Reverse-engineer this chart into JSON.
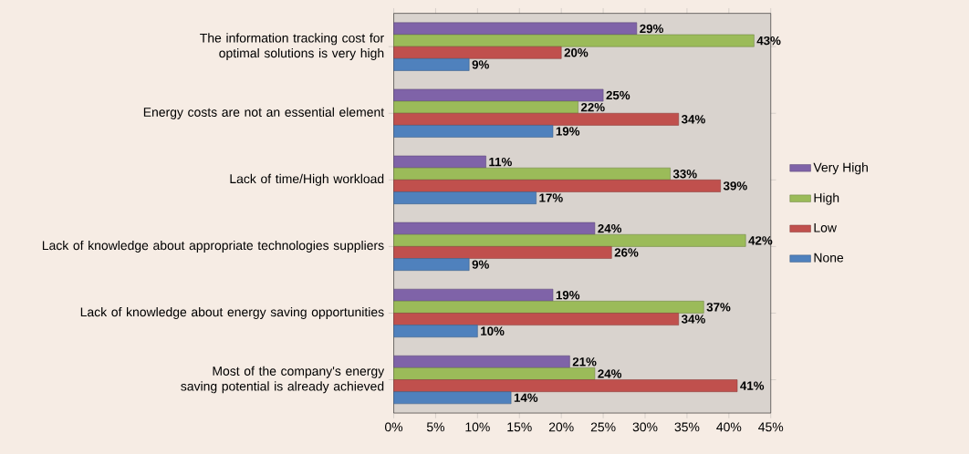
{
  "chart_data": {
    "type": "bar",
    "orientation": "horizontal",
    "categories": [
      "The information tracking cost for optimal solutions is very high",
      "Energy costs are not an essential element",
      "Lack of time/High workload",
      "Lack of knowledge about appropriate technologies suppliers",
      "Lack of knowledge about energy saving opportunities",
      "Most of the company's energy saving potential is already achieved"
    ],
    "series": [
      {
        "name": "Very High",
        "color": "#7f63a8",
        "values": [
          29,
          25,
          11,
          24,
          19,
          21
        ],
        "value_labels": [
          "29%",
          "25%",
          "11%",
          "24%",
          "19%",
          "21%"
        ]
      },
      {
        "name": "High",
        "color": "#9bbb59",
        "values": [
          43,
          22,
          33,
          42,
          37,
          24
        ],
        "value_labels": [
          "43%",
          "22%",
          "33%",
          "42%",
          "37%",
          "24%"
        ]
      },
      {
        "name": "Low",
        "color": "#c0504d",
        "values": [
          20,
          34,
          39,
          26,
          34,
          41
        ],
        "value_labels": [
          "20%",
          "34%",
          "39%",
          "26%",
          "34%",
          "41%"
        ]
      },
      {
        "name": "None",
        "color": "#4f81bd",
        "values": [
          9,
          19,
          17,
          9,
          10,
          14
        ],
        "value_labels": [
          "9%",
          "19%",
          "17%",
          "9%",
          "10%",
          "14%"
        ]
      }
    ],
    "xlim": [
      0,
      45
    ],
    "xticks": [
      {
        "value": 0,
        "label": "0%"
      },
      {
        "value": 5,
        "label": "5%"
      },
      {
        "value": 10,
        "label": "10%"
      },
      {
        "value": 15,
        "label": "15%"
      },
      {
        "value": 20,
        "label": "20%"
      },
      {
        "value": 25,
        "label": "25%"
      },
      {
        "value": 30,
        "label": "30%"
      },
      {
        "value": 35,
        "label": "35%"
      },
      {
        "value": 40,
        "label": "40%"
      },
      {
        "value": 45,
        "label": "45%"
      }
    ],
    "legend": "right"
  }
}
